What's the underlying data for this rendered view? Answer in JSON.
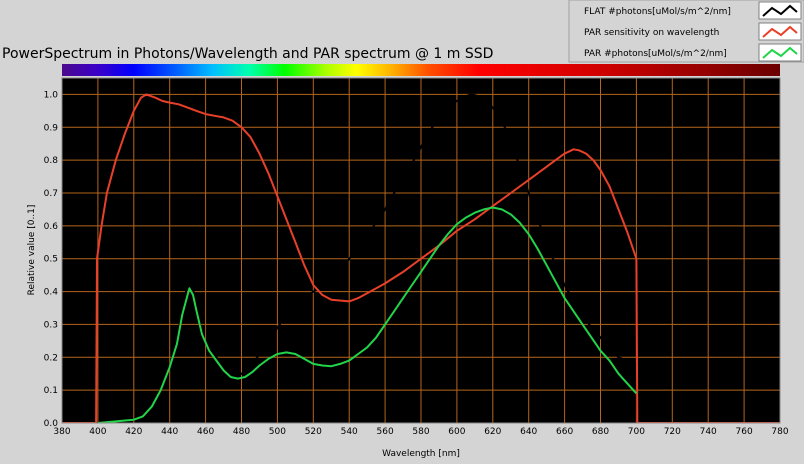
{
  "chart_data": {
    "type": "line",
    "title": "PowerSpectrum in Photons/Wavelength and PAR spectrum @ 1 m SSD",
    "xlabel": "Wavelength [nm]",
    "ylabel": "Relative value [0..1]",
    "xlim": [
      380,
      780
    ],
    "ylim": [
      0,
      1.05
    ],
    "x_ticks": [
      "380",
      "400",
      "420",
      "440",
      "460",
      "480",
      "500",
      "520",
      "540",
      "560",
      "580",
      "600",
      "620",
      "640",
      "660",
      "680",
      "700",
      "720",
      "740",
      "760",
      "780"
    ],
    "y_ticks": [
      "0.0",
      "0.1",
      "0.2",
      "0.3",
      "0.4",
      "0.5",
      "0.6",
      "0.7",
      "0.8",
      "0.9",
      "1.0"
    ],
    "grid": true,
    "plot_background": "#000000",
    "grid_color": "#b5651d",
    "legend_position": "top-right",
    "series": [
      {
        "name": "FLAT #photons[uMol/s/m^2/nm]",
        "color": "#000000",
        "points": [
          [
            380,
            0
          ],
          [
            400,
            0
          ],
          [
            410,
            0.005
          ],
          [
            420,
            0.01
          ],
          [
            425,
            0.02
          ],
          [
            430,
            0.05
          ],
          [
            435,
            0.1
          ],
          [
            440,
            0.17
          ],
          [
            444,
            0.25
          ],
          [
            447,
            0.35
          ],
          [
            450,
            0.42
          ],
          [
            451,
            0.43
          ],
          [
            453,
            0.41
          ],
          [
            455,
            0.35
          ],
          [
            458,
            0.27
          ],
          [
            462,
            0.22
          ],
          [
            466,
            0.2
          ],
          [
            470,
            0.17
          ],
          [
            474,
            0.15
          ],
          [
            478,
            0.145
          ],
          [
            482,
            0.155
          ],
          [
            486,
            0.18
          ],
          [
            490,
            0.21
          ],
          [
            495,
            0.25
          ],
          [
            500,
            0.29
          ],
          [
            505,
            0.33
          ],
          [
            510,
            0.36
          ],
          [
            515,
            0.38
          ],
          [
            520,
            0.4
          ],
          [
            525,
            0.415
          ],
          [
            530,
            0.43
          ],
          [
            535,
            0.46
          ],
          [
            540,
            0.5
          ],
          [
            545,
            0.53
          ],
          [
            550,
            0.57
          ],
          [
            555,
            0.61
          ],
          [
            560,
            0.65
          ],
          [
            565,
            0.7
          ],
          [
            570,
            0.74
          ],
          [
            575,
            0.79
          ],
          [
            580,
            0.84
          ],
          [
            585,
            0.89
          ],
          [
            590,
            0.93
          ],
          [
            595,
            0.96
          ],
          [
            600,
            0.98
          ],
          [
            605,
            0.995
          ],
          [
            608,
            1.0
          ],
          [
            612,
            0.995
          ],
          [
            616,
            0.98
          ],
          [
            620,
            0.96
          ],
          [
            625,
            0.92
          ],
          [
            630,
            0.86
          ],
          [
            635,
            0.78
          ],
          [
            640,
            0.7
          ],
          [
            645,
            0.62
          ],
          [
            650,
            0.55
          ],
          [
            655,
            0.48
          ],
          [
            660,
            0.42
          ],
          [
            665,
            0.37
          ],
          [
            670,
            0.33
          ],
          [
            675,
            0.29
          ],
          [
            680,
            0.26
          ],
          [
            685,
            0.23
          ],
          [
            690,
            0.2
          ],
          [
            700,
            0.18
          ],
          [
            700.5,
            0
          ],
          [
            780,
            0
          ]
        ]
      },
      {
        "name": "PAR sensitivity on wavelength",
        "color": "#e8402a",
        "points": [
          [
            380,
            0
          ],
          [
            399,
            0
          ],
          [
            399.5,
            0.5
          ],
          [
            402,
            0.6
          ],
          [
            405,
            0.7
          ],
          [
            410,
            0.8
          ],
          [
            415,
            0.88
          ],
          [
            420,
            0.95
          ],
          [
            424,
            0.99
          ],
          [
            427,
            1.0
          ],
          [
            432,
            0.99
          ],
          [
            436,
            0.98
          ],
          [
            440,
            0.975
          ],
          [
            445,
            0.97
          ],
          [
            450,
            0.96
          ],
          [
            455,
            0.95
          ],
          [
            460,
            0.94
          ],
          [
            465,
            0.935
          ],
          [
            470,
            0.93
          ],
          [
            475,
            0.92
          ],
          [
            480,
            0.9
          ],
          [
            485,
            0.87
          ],
          [
            490,
            0.82
          ],
          [
            495,
            0.76
          ],
          [
            500,
            0.69
          ],
          [
            505,
            0.62
          ],
          [
            510,
            0.55
          ],
          [
            515,
            0.48
          ],
          [
            520,
            0.42
          ],
          [
            525,
            0.39
          ],
          [
            530,
            0.375
          ],
          [
            540,
            0.37
          ],
          [
            545,
            0.38
          ],
          [
            550,
            0.395
          ],
          [
            560,
            0.425
          ],
          [
            570,
            0.46
          ],
          [
            580,
            0.5
          ],
          [
            590,
            0.54
          ],
          [
            600,
            0.585
          ],
          [
            610,
            0.62
          ],
          [
            620,
            0.66
          ],
          [
            630,
            0.7
          ],
          [
            640,
            0.74
          ],
          [
            650,
            0.78
          ],
          [
            655,
            0.8
          ],
          [
            660,
            0.82
          ],
          [
            665,
            0.833
          ],
          [
            668,
            0.83
          ],
          [
            672,
            0.82
          ],
          [
            676,
            0.8
          ],
          [
            680,
            0.77
          ],
          [
            685,
            0.72
          ],
          [
            690,
            0.65
          ],
          [
            695,
            0.58
          ],
          [
            700,
            0.5
          ],
          [
            700.5,
            0
          ],
          [
            780,
            0
          ]
        ]
      },
      {
        "name": "PAR #photons[uMol/s/m^2/nm]",
        "color": "#22d44a",
        "points": [
          [
            400,
            0
          ],
          [
            410,
            0.005
          ],
          [
            420,
            0.01
          ],
          [
            425,
            0.02
          ],
          [
            430,
            0.05
          ],
          [
            435,
            0.1
          ],
          [
            440,
            0.17
          ],
          [
            444,
            0.24
          ],
          [
            447,
            0.33
          ],
          [
            450,
            0.39
          ],
          [
            451,
            0.41
          ],
          [
            453,
            0.39
          ],
          [
            455,
            0.34
          ],
          [
            458,
            0.27
          ],
          [
            462,
            0.22
          ],
          [
            466,
            0.19
          ],
          [
            470,
            0.16
          ],
          [
            474,
            0.14
          ],
          [
            478,
            0.135
          ],
          [
            482,
            0.14
          ],
          [
            486,
            0.155
          ],
          [
            490,
            0.175
          ],
          [
            495,
            0.195
          ],
          [
            500,
            0.21
          ],
          [
            505,
            0.215
          ],
          [
            510,
            0.21
          ],
          [
            515,
            0.195
          ],
          [
            520,
            0.18
          ],
          [
            525,
            0.175
          ],
          [
            530,
            0.173
          ],
          [
            535,
            0.18
          ],
          [
            540,
            0.19
          ],
          [
            545,
            0.21
          ],
          [
            550,
            0.23
          ],
          [
            555,
            0.26
          ],
          [
            560,
            0.3
          ],
          [
            565,
            0.34
          ],
          [
            570,
            0.38
          ],
          [
            575,
            0.42
          ],
          [
            580,
            0.46
          ],
          [
            585,
            0.5
          ],
          [
            590,
            0.54
          ],
          [
            595,
            0.575
          ],
          [
            600,
            0.605
          ],
          [
            605,
            0.625
          ],
          [
            610,
            0.64
          ],
          [
            615,
            0.65
          ],
          [
            620,
            0.656
          ],
          [
            625,
            0.65
          ],
          [
            630,
            0.635
          ],
          [
            635,
            0.61
          ],
          [
            640,
            0.575
          ],
          [
            645,
            0.53
          ],
          [
            650,
            0.48
          ],
          [
            655,
            0.43
          ],
          [
            660,
            0.38
          ],
          [
            665,
            0.34
          ],
          [
            670,
            0.3
          ],
          [
            675,
            0.26
          ],
          [
            680,
            0.22
          ],
          [
            685,
            0.19
          ],
          [
            690,
            0.15
          ],
          [
            695,
            0.12
          ],
          [
            700,
            0.09
          ]
        ]
      }
    ]
  }
}
